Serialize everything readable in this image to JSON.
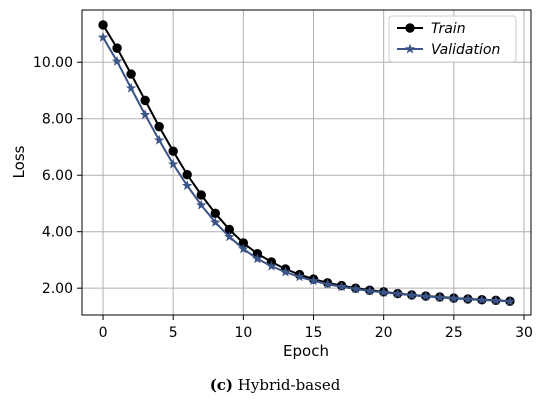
{
  "chart_data": {
    "type": "line",
    "title": "",
    "xlabel": "Epoch",
    "ylabel": "Loss",
    "xlim": [
      -1.5,
      30.5
    ],
    "ylim": [
      1.05,
      11.85
    ],
    "xticks": [
      0,
      5,
      10,
      15,
      20,
      25,
      30
    ],
    "yticks": [
      2.0,
      4.0,
      6.0,
      8.0,
      10.0
    ],
    "ytick_labels": [
      "2.00",
      "4.00",
      "6.00",
      "8.00",
      "10.00"
    ],
    "grid": true,
    "legend_position": "top-right",
    "x": [
      0,
      1,
      2,
      3,
      4,
      5,
      6,
      7,
      8,
      9,
      10,
      11,
      12,
      13,
      14,
      15,
      16,
      17,
      18,
      19,
      20,
      21,
      22,
      23,
      24,
      25,
      26,
      27,
      28,
      29
    ],
    "series": [
      {
        "name": "Train",
        "color": "#000000",
        "marker": "circle",
        "values": [
          11.32,
          10.5,
          9.58,
          8.65,
          7.72,
          6.85,
          6.02,
          5.3,
          4.65,
          4.08,
          3.6,
          3.22,
          2.93,
          2.68,
          2.48,
          2.32,
          2.19,
          2.09,
          2.0,
          1.93,
          1.87,
          1.81,
          1.76,
          1.72,
          1.69,
          1.65,
          1.62,
          1.59,
          1.57,
          1.54
        ]
      },
      {
        "name": "Validation",
        "color": "#3a5488",
        "marker": "star",
        "values": [
          10.88,
          10.03,
          9.08,
          8.14,
          7.24,
          6.39,
          5.63,
          4.94,
          4.33,
          3.82,
          3.39,
          3.04,
          2.78,
          2.57,
          2.4,
          2.26,
          2.14,
          2.05,
          1.97,
          1.9,
          1.85,
          1.8,
          1.75,
          1.71,
          1.67,
          1.64,
          1.61,
          1.58,
          1.56,
          1.53
        ]
      }
    ]
  },
  "caption": {
    "tag": "(c)",
    "text": " Hybrid-based"
  }
}
